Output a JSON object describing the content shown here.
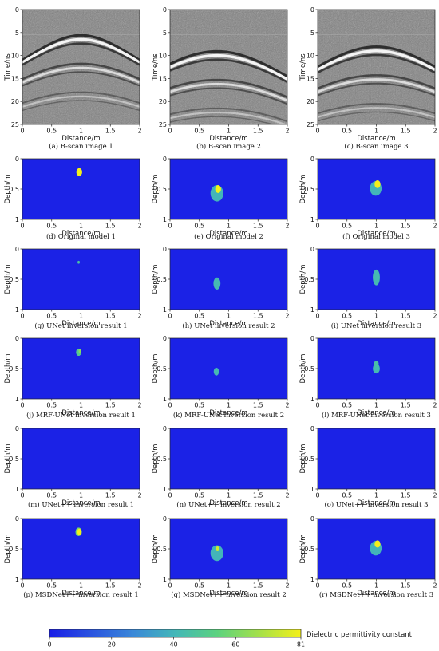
{
  "chart_data": [
    {
      "type": "heatmap",
      "kind": "bscan",
      "caption": "(a) B-scan image 1",
      "xlabel": "Distance/m",
      "ylabel": "Time/ns",
      "xticks": [
        "0",
        "0.5",
        "1",
        "1.5",
        "2"
      ],
      "yticks": [
        "0",
        "5",
        "10",
        "15",
        "20",
        "25"
      ],
      "xlim": [
        0,
        2
      ],
      "ylim": [
        0,
        25
      ],
      "apex_x": 1.0,
      "apex_t": 6.5
    },
    {
      "type": "heatmap",
      "kind": "bscan",
      "caption": "(b) B-scan image 2",
      "xlabel": "Distance/m",
      "ylabel": "Time/ns",
      "xticks": [
        "0",
        "0.5",
        "1",
        "1.5",
        "2"
      ],
      "yticks": [
        "0",
        "5",
        "10",
        "15",
        "20",
        "25"
      ],
      "xlim": [
        0,
        2
      ],
      "ylim": [
        0,
        25
      ],
      "apex_x": 0.8,
      "apex_t": 10.0
    },
    {
      "type": "heatmap",
      "kind": "bscan",
      "caption": "(c) B-scan image 3",
      "xlabel": "Distance/m",
      "ylabel": "Time/ns",
      "xticks": [
        "0",
        "0.5",
        "1",
        "1.5",
        "2"
      ],
      "yticks": [
        "0",
        "5",
        "10",
        "15",
        "20",
        "25"
      ],
      "xlim": [
        0,
        2
      ],
      "ylim": [
        0,
        25
      ],
      "apex_x": 1.0,
      "apex_t": 9.0
    },
    {
      "type": "heatmap",
      "kind": "model",
      "caption": "(d) Original model 1",
      "xlabel": "Distance/m",
      "ylabel": "Depth/m",
      "xticks": [
        "0",
        "0.5",
        "1",
        "1.5",
        "2"
      ],
      "yticks": [
        "0",
        "0.5",
        "1"
      ],
      "xlim": [
        0,
        2
      ],
      "ylim": [
        0,
        1
      ],
      "shapes": [
        {
          "cx": 0.97,
          "cy": 0.22,
          "rx": 0.05,
          "ry": 0.065,
          "value": 81
        }
      ]
    },
    {
      "type": "heatmap",
      "kind": "model",
      "caption": "(e) Original model 2",
      "xlabel": "Distance/m",
      "ylabel": "Depth/m",
      "xticks": [
        "0",
        "0.5",
        "1",
        "1.5",
        "2"
      ],
      "yticks": [
        "0",
        "0.5",
        "1"
      ],
      "xlim": [
        0,
        2
      ],
      "ylim": [
        0,
        1
      ],
      "shapes": [
        {
          "cx": 0.8,
          "cy": 0.57,
          "rx": 0.11,
          "ry": 0.135,
          "value": 40
        },
        {
          "cx": 0.82,
          "cy": 0.5,
          "rx": 0.05,
          "ry": 0.065,
          "value": 81
        }
      ]
    },
    {
      "type": "heatmap",
      "kind": "model",
      "caption": "(f) Original model 3",
      "xlabel": "Distance/m",
      "ylabel": "Depth/m",
      "xticks": [
        "0",
        "0.5",
        "1",
        "1.5",
        "2"
      ],
      "yticks": [
        "0",
        "0.5",
        "1"
      ],
      "xlim": [
        0,
        2
      ],
      "ylim": [
        0,
        1
      ],
      "shapes": [
        {
          "cx": 0.99,
          "cy": 0.49,
          "rx": 0.1,
          "ry": 0.12,
          "value": 40
        },
        {
          "cx": 1.02,
          "cy": 0.42,
          "rx": 0.05,
          "ry": 0.065,
          "value": 81
        }
      ]
    },
    {
      "type": "heatmap",
      "kind": "model",
      "caption": "(g) UNet inversion result 1",
      "xlabel": "Distance/m",
      "ylabel": "Depth/m",
      "xticks": [
        "0",
        "0.5",
        "1",
        "1.5",
        "2"
      ],
      "yticks": [
        "0",
        "0.5",
        "1"
      ],
      "xlim": [
        0,
        2
      ],
      "ylim": [
        0,
        1
      ],
      "shapes": [
        {
          "cx": 0.96,
          "cy": 0.22,
          "rx": 0.02,
          "ry": 0.025,
          "value": 45
        }
      ]
    },
    {
      "type": "heatmap",
      "kind": "model",
      "caption": "(h) UNet inversion result 2",
      "xlabel": "Distance/m",
      "ylabel": "Depth/m",
      "xticks": [
        "0",
        "0.5",
        "1",
        "1.5",
        "2"
      ],
      "yticks": [
        "0",
        "0.5",
        "1"
      ],
      "xlim": [
        0,
        2
      ],
      "ylim": [
        0,
        1
      ],
      "shapes": [
        {
          "cx": 0.8,
          "cy": 0.57,
          "rx": 0.06,
          "ry": 0.1,
          "value": 42
        }
      ]
    },
    {
      "type": "heatmap",
      "kind": "model",
      "caption": "(i) UNet inversion result 3",
      "xlabel": "Distance/m",
      "ylabel": "Depth/m",
      "xticks": [
        "0",
        "0.5",
        "1",
        "1.5",
        "2"
      ],
      "yticks": [
        "0",
        "0.5",
        "1"
      ],
      "xlim": [
        0,
        2
      ],
      "ylim": [
        0,
        1
      ],
      "shapes": [
        {
          "cx": 1.0,
          "cy": 0.47,
          "rx": 0.06,
          "ry": 0.13,
          "value": 42
        }
      ]
    },
    {
      "type": "heatmap",
      "kind": "model",
      "caption": "(j) MRF-UNet inversion result 1",
      "xlabel": "Distance/m",
      "ylabel": "Depth/m",
      "xticks": [
        "0",
        "0.5",
        "1",
        "1.5",
        "2"
      ],
      "yticks": [
        "0",
        "0.5",
        "1"
      ],
      "xlim": [
        0,
        2
      ],
      "ylim": [
        0,
        1
      ],
      "shapes": [
        {
          "cx": 0.96,
          "cy": 0.23,
          "rx": 0.045,
          "ry": 0.06,
          "value": 50
        },
        {
          "cx": 0.98,
          "cy": 0.21,
          "rx": 0.02,
          "ry": 0.03,
          "value": 62
        }
      ]
    },
    {
      "type": "heatmap",
      "kind": "model",
      "caption": "(k) MRF-UNet inversion result 2",
      "xlabel": "Distance/m",
      "ylabel": "Depth/m",
      "xticks": [
        "0",
        "0.5",
        "1",
        "1.5",
        "2"
      ],
      "yticks": [
        "0",
        "0.5",
        "1"
      ],
      "xlim": [
        0,
        2
      ],
      "ylim": [
        0,
        1
      ],
      "shapes": [
        {
          "cx": 0.79,
          "cy": 0.55,
          "rx": 0.045,
          "ry": 0.065,
          "value": 42
        }
      ]
    },
    {
      "type": "heatmap",
      "kind": "model",
      "caption": "(l) MRF-UNet inversion result 3",
      "xlabel": "Distance/m",
      "ylabel": "Depth/m",
      "xticks": [
        "0",
        "0.5",
        "1",
        "1.5",
        "2"
      ],
      "yticks": [
        "0",
        "0.5",
        "1"
      ],
      "xlim": [
        0,
        2
      ],
      "ylim": [
        0,
        1
      ],
      "shapes": [
        {
          "cx": 1.0,
          "cy": 0.5,
          "rx": 0.06,
          "ry": 0.08,
          "value": 42
        },
        {
          "cx": 1.0,
          "cy": 0.42,
          "rx": 0.04,
          "ry": 0.05,
          "value": 45
        }
      ]
    },
    {
      "type": "heatmap",
      "kind": "model",
      "caption": "(m) UNet++ inversion result 1",
      "xlabel": "Distance/m",
      "ylabel": "Depth/m",
      "xticks": [
        "0",
        "0.5",
        "1",
        "1.5",
        "2"
      ],
      "yticks": [
        "0",
        "0.5",
        "1"
      ],
      "xlim": [
        0,
        2
      ],
      "ylim": [
        0,
        1
      ],
      "shapes": []
    },
    {
      "type": "heatmap",
      "kind": "model",
      "caption": "(n) UNet++ inversion result 2",
      "xlabel": "Distance/m",
      "ylabel": "Depth/m",
      "xticks": [
        "0",
        "0.5",
        "1",
        "1.5",
        "2"
      ],
      "yticks": [
        "0",
        "0.5",
        "1"
      ],
      "xlim": [
        0,
        2
      ],
      "ylim": [
        0,
        1
      ],
      "shapes": []
    },
    {
      "type": "heatmap",
      "kind": "model",
      "caption": "(o) UNet++ inversion result 3",
      "xlabel": "Distance/m",
      "ylabel": "Depth/m",
      "xticks": [
        "0",
        "0.5",
        "1",
        "1.5",
        "2"
      ],
      "yticks": [
        "0",
        "0.5",
        "1"
      ],
      "xlim": [
        0,
        2
      ],
      "ylim": [
        0,
        1
      ],
      "shapes": []
    },
    {
      "type": "heatmap",
      "kind": "model",
      "caption": "(p) MSDNet++ inversion result 1",
      "xlabel": "Distance/m",
      "ylabel": "Depth/m",
      "xticks": [
        "0",
        "0.5",
        "1",
        "1.5",
        "2"
      ],
      "yticks": [
        "0",
        "0.5",
        "1"
      ],
      "xlim": [
        0,
        2
      ],
      "ylim": [
        0,
        1
      ],
      "shapes": [
        {
          "cx": 0.96,
          "cy": 0.22,
          "rx": 0.055,
          "ry": 0.07,
          "value": 60
        },
        {
          "cx": 0.97,
          "cy": 0.22,
          "rx": 0.035,
          "ry": 0.05,
          "value": 81
        }
      ]
    },
    {
      "type": "heatmap",
      "kind": "model",
      "caption": "(q) MSDNet++ inversion result 2",
      "xlabel": "Distance/m",
      "ylabel": "Depth/m",
      "xticks": [
        "0",
        "0.5",
        "1",
        "1.5",
        "2"
      ],
      "yticks": [
        "0",
        "0.5",
        "1"
      ],
      "xlim": [
        0,
        2
      ],
      "ylim": [
        0,
        1
      ],
      "shapes": [
        {
          "cx": 0.8,
          "cy": 0.57,
          "rx": 0.11,
          "ry": 0.13,
          "value": 40
        },
        {
          "cx": 0.81,
          "cy": 0.5,
          "rx": 0.035,
          "ry": 0.04,
          "value": 75
        }
      ]
    },
    {
      "type": "heatmap",
      "kind": "model",
      "caption": "(r) MSDNet++ inversion result 3",
      "xlabel": "Distance/m",
      "ylabel": "Depth/m",
      "xticks": [
        "0",
        "0.5",
        "1",
        "1.5",
        "2"
      ],
      "yticks": [
        "0",
        "0.5",
        "1"
      ],
      "xlim": [
        0,
        2
      ],
      "ylim": [
        0,
        1
      ],
      "shapes": [
        {
          "cx": 0.99,
          "cy": 0.49,
          "rx": 0.1,
          "ry": 0.12,
          "value": 40
        },
        {
          "cx": 1.02,
          "cy": 0.42,
          "rx": 0.05,
          "ry": 0.06,
          "value": 81
        }
      ]
    }
  ],
  "colorbar": {
    "label": "Dielectric permittivity constant",
    "min": 0,
    "max": 81,
    "ticks": [
      "0",
      "20",
      "40",
      "60",
      "81"
    ],
    "tick_values": [
      0,
      20,
      40,
      60,
      81
    ],
    "colors": [
      "#1a1ee6",
      "#2a54e0",
      "#3a88d8",
      "#43b7b8",
      "#5cd27f",
      "#a4e04a",
      "#f4f01a"
    ]
  }
}
